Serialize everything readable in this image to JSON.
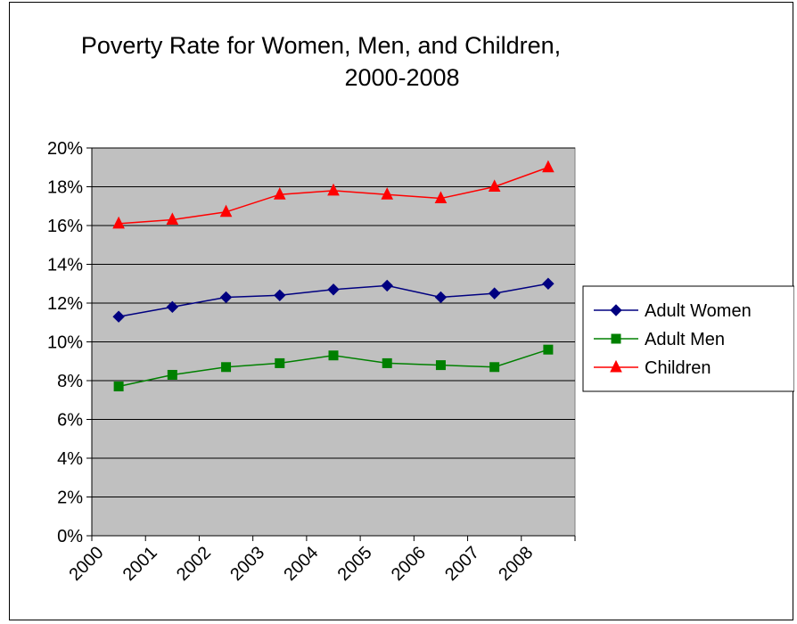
{
  "chart_data": {
    "type": "line",
    "title": [
      "Poverty Rate for Women, Men, and Children,",
      "2000-2008"
    ],
    "categories": [
      "2000",
      "2001",
      "2002",
      "2003",
      "2004",
      "2005",
      "2006",
      "2007",
      "2008"
    ],
    "y_ticks": [
      "0%",
      "2%",
      "4%",
      "6%",
      "8%",
      "10%",
      "12%",
      "14%",
      "16%",
      "18%",
      "20%"
    ],
    "ylim": [
      0,
      20
    ],
    "y_unit": "percent",
    "grid": true,
    "legend_position": "right",
    "plot_background": "#C0C0C0",
    "series": [
      {
        "name": "Adult Women",
        "color": "#000080",
        "marker": "diamond",
        "values": [
          11.3,
          11.8,
          12.3,
          12.4,
          12.7,
          12.9,
          12.3,
          12.5,
          13.0
        ]
      },
      {
        "name": "Adult Men",
        "color": "#008000",
        "marker": "square",
        "values": [
          7.7,
          8.3,
          8.7,
          8.9,
          9.3,
          8.9,
          8.8,
          8.7,
          9.6
        ]
      },
      {
        "name": "Children",
        "color": "#FF0000",
        "marker": "triangle",
        "values": [
          16.1,
          16.3,
          16.7,
          17.6,
          17.8,
          17.6,
          17.4,
          18.0,
          19.0
        ]
      }
    ]
  }
}
